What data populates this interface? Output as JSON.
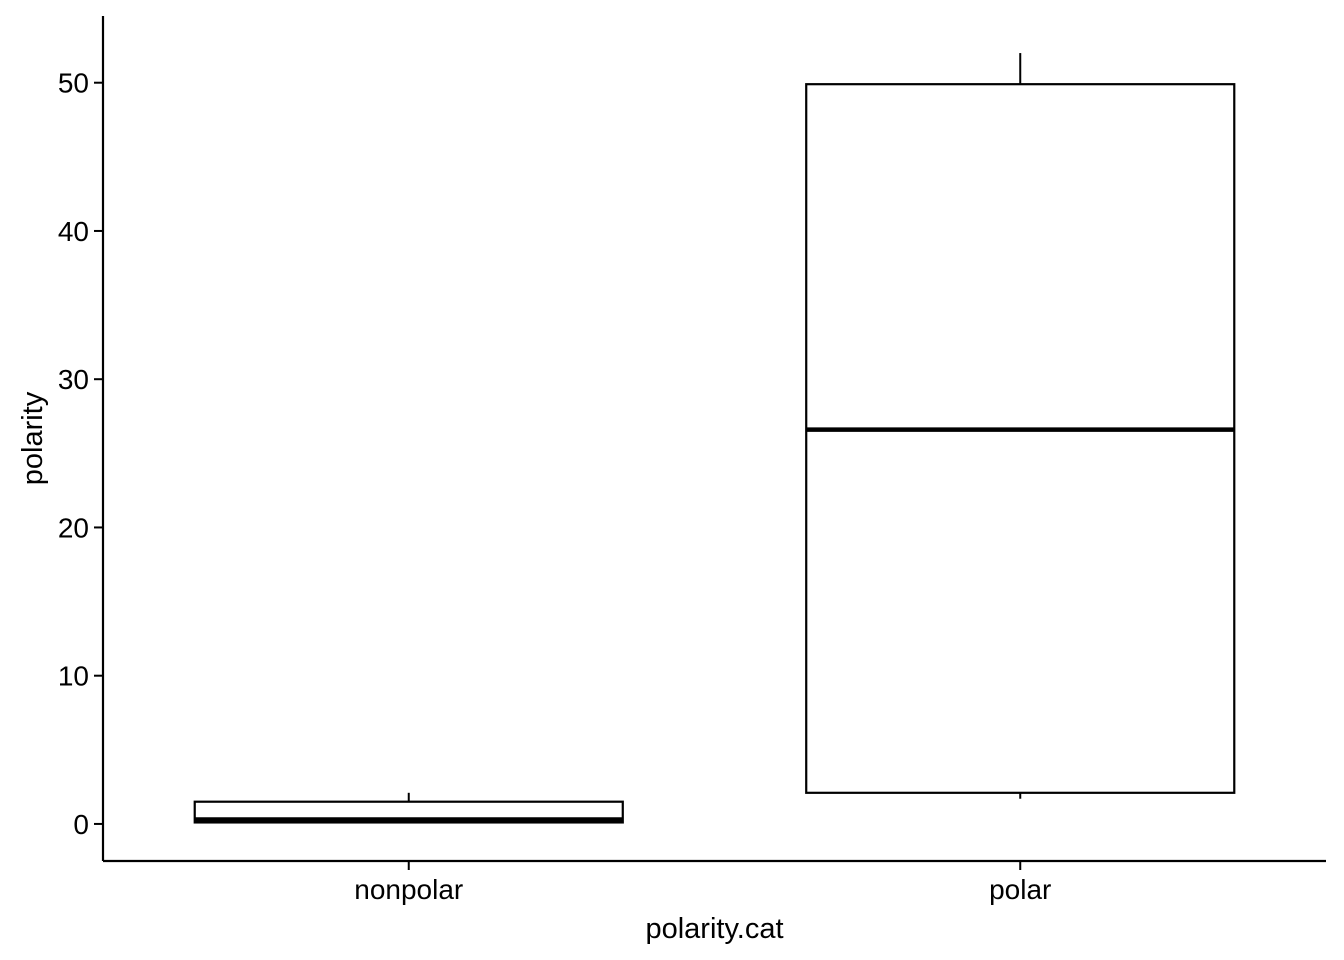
{
  "chart_data": {
    "type": "box",
    "xlabel": "polarity.cat",
    "ylabel": "polarity",
    "ylim": [
      -2.5,
      54.5
    ],
    "yticks": [
      0,
      10,
      20,
      30,
      40,
      50
    ],
    "ytick_labels": [
      "0",
      "10",
      "20",
      "30",
      "40",
      "50"
    ],
    "categories": [
      "nonpolar",
      "polar"
    ],
    "boxes": [
      {
        "category": "nonpolar",
        "whisker_low": 0.1,
        "q1": 0.1,
        "median": 0.3,
        "q3": 1.5,
        "whisker_high": 2.1
      },
      {
        "category": "polar",
        "whisker_low": 1.7,
        "q1": 2.1,
        "median": 26.6,
        "q3": 49.9,
        "whisker_high": 52.0
      }
    ],
    "grid": false,
    "legend": "none",
    "colors": {
      "box_fill": "#ffffff",
      "box_stroke": "#000000",
      "axis": "#000000"
    }
  }
}
